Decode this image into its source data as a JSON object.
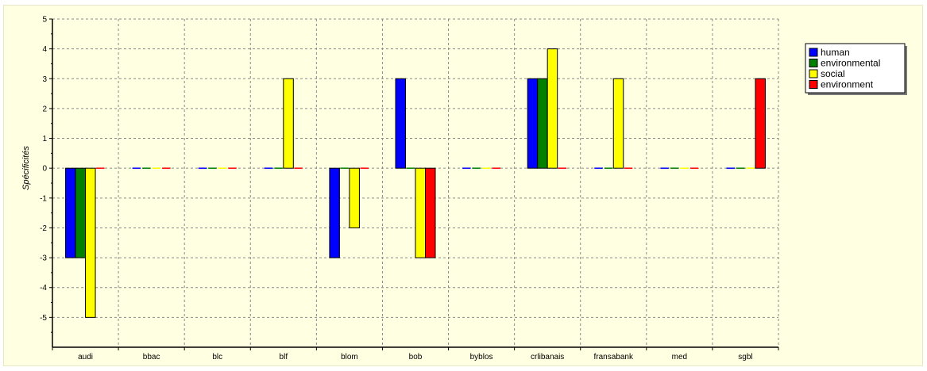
{
  "chart_data": {
    "type": "bar",
    "title": "",
    "xlabel": "",
    "ylabel": "Spécificités",
    "ylim": [
      -6,
      5
    ],
    "yticks": [
      -5,
      -4,
      -3,
      -2,
      -1,
      0,
      1,
      2,
      3,
      4,
      5
    ],
    "grid": true,
    "legend_position": "top-right",
    "categories": [
      "audi",
      "bbac",
      "blc",
      "blf",
      "blom",
      "bob",
      "byblos",
      "crlibanais",
      "fransabank",
      "med",
      "sgbl"
    ],
    "series": [
      {
        "name": "human",
        "color": "#0000ff",
        "values": [
          -3,
          0,
          0,
          0,
          -3,
          3,
          0,
          3,
          0,
          0,
          0
        ]
      },
      {
        "name": "environmental",
        "color": "#007f00",
        "values": [
          -3,
          0,
          0,
          0,
          0,
          0,
          0,
          3,
          0,
          0,
          0
        ]
      },
      {
        "name": "social",
        "color": "#ffff00",
        "values": [
          -5,
          0,
          0,
          3,
          -2,
          -3,
          0,
          4,
          3,
          0,
          0
        ]
      },
      {
        "name": "environment",
        "color": "#ff0000",
        "values": [
          0,
          0,
          0,
          0,
          0,
          -3,
          0,
          0,
          0,
          0,
          3
        ]
      }
    ]
  }
}
